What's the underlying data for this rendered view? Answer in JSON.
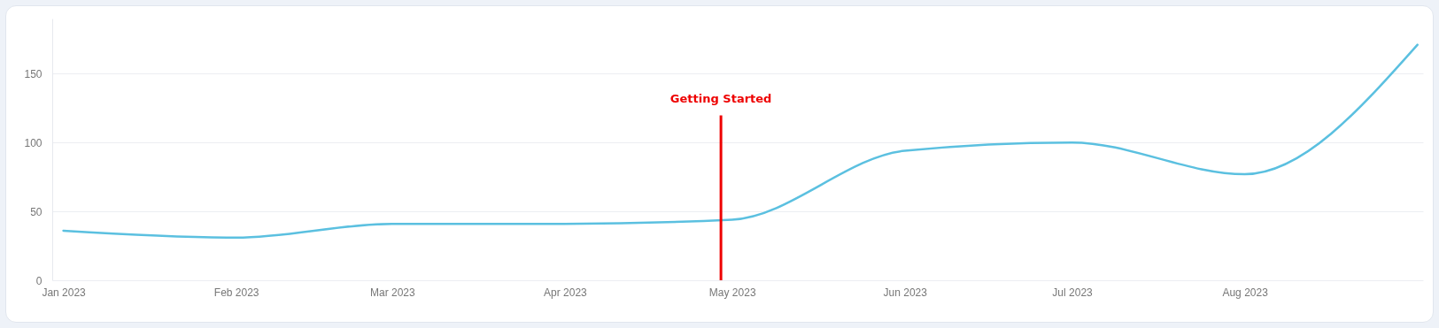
{
  "chart_data": {
    "type": "line",
    "x": [
      "2023-01-01",
      "2023-02-01",
      "2023-03-01",
      "2023-04-01",
      "2023-05-01",
      "2023-06-01",
      "2023-07-01",
      "2023-08-01",
      "2023-09-01"
    ],
    "series": [
      {
        "color": "#5bc0e0",
        "values": [
          36,
          31,
          41,
          41,
          44,
          94,
          100,
          77,
          171
        ]
      }
    ],
    "xlim": [
      "2022-12-30",
      "2023-09-02"
    ],
    "xticks": [
      {
        "value": "2023-01-01",
        "label": "Jan 2023"
      },
      {
        "value": "2023-02-01",
        "label": "Feb 2023"
      },
      {
        "value": "2023-03-01",
        "label": "Mar 2023"
      },
      {
        "value": "2023-04-01",
        "label": "Apr 2023"
      },
      {
        "value": "2023-05-01",
        "label": "May 2023"
      },
      {
        "value": "2023-06-01",
        "label": "Jun 2023"
      },
      {
        "value": "2023-07-01",
        "label": "Jul 2023"
      },
      {
        "value": "2023-08-01",
        "label": "Aug 2023"
      }
    ],
    "ylim": [
      0,
      190
    ],
    "yticks": [
      0,
      50,
      100,
      150
    ],
    "ref_lines": [
      {
        "axis": "x",
        "value": "2023-04-29",
        "label": "Getting Started",
        "color": "#ee0000"
      }
    ],
    "grid": "y",
    "marker": "none",
    "line_style": "solid"
  }
}
